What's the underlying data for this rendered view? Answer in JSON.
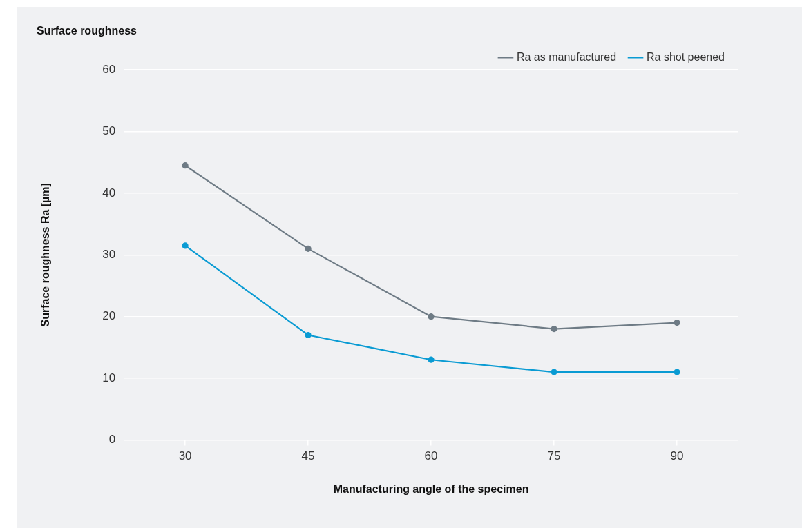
{
  "chart_data": {
    "type": "line",
    "title": "Surface roughness",
    "xlabel": "Manufacturing angle of the specimen",
    "ylabel": "Surface roughness Ra [µm]",
    "categories": [
      "30",
      "45",
      "60",
      "75",
      "90"
    ],
    "series": [
      {
        "name": "Ra as manufactured",
        "color": "#6e7b85",
        "values": [
          44.5,
          31,
          20,
          18,
          19
        ]
      },
      {
        "name": "Ra shot peened",
        "color": "#0a9bd3",
        "values": [
          31.5,
          17,
          13,
          11,
          11
        ]
      }
    ],
    "ylim": [
      0,
      60
    ],
    "yticks": [
      0,
      10,
      20,
      30,
      40,
      50,
      60
    ],
    "grid": "y",
    "legend": "top right",
    "marker": "circle",
    "line_style": "solid"
  }
}
